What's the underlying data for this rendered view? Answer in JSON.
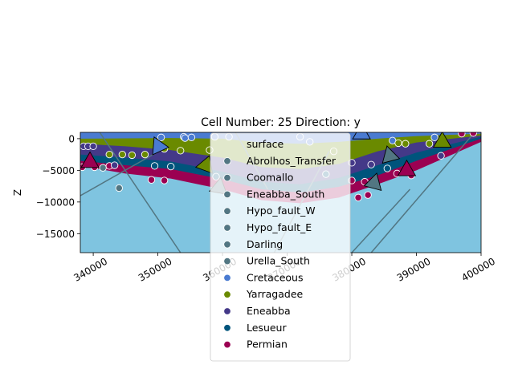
{
  "chart_data": {
    "type": "cross-section",
    "title": "Cell Number: 25 Direction: y",
    "xlabel": "",
    "ylabel": "Z",
    "xlim": [
      338000,
      400000
    ],
    "ylim": [
      -18000,
      1000
    ],
    "xticks": [
      340000,
      350000,
      360000,
      370000,
      380000,
      390000,
      400000
    ],
    "xtick_labels": [
      "340000",
      "350000",
      "360000",
      "370000",
      "380000",
      "390000",
      "400000"
    ],
    "yticks": [
      0,
      -5000,
      -10000,
      -15000
    ],
    "ytick_labels": [
      "0",
      "−5000",
      "−10000",
      "−15000"
    ],
    "legend": [
      {
        "name": "surface",
        "color": "none"
      },
      {
        "name": "Abrolhos_Transfer",
        "color": "#527682"
      },
      {
        "name": "Coomallo",
        "color": "#527682"
      },
      {
        "name": "Eneabba_South",
        "color": "#527682"
      },
      {
        "name": "Hypo_fault_W",
        "color": "#527682"
      },
      {
        "name": "Hypo_fault_E",
        "color": "#527682"
      },
      {
        "name": "Darling",
        "color": "#527682"
      },
      {
        "name": "Urella_South",
        "color": "#527682"
      },
      {
        "name": "Cretaceous",
        "color": "#4a7bd1"
      },
      {
        "name": "Yarragadee",
        "color": "#6a8a00"
      },
      {
        "name": "Eneabba",
        "color": "#443988"
      },
      {
        "name": "Lesueur",
        "color": "#00547c"
      },
      {
        "name": "Permian",
        "color": "#9b0052"
      }
    ],
    "legend_location": "center",
    "basement_color": "#7fc4e0",
    "layers": [
      {
        "name": "Cretaceous",
        "color": "#4a7bd1",
        "x": [
          338000,
          345000,
          352000,
          360000,
          366000,
          372000,
          378000,
          384000,
          390000,
          400000
        ],
        "bottom": [
          0,
          50,
          100,
          0,
          -600,
          -800,
          -500,
          0,
          400,
          800
        ]
      },
      {
        "name": "Yarragadee",
        "color": "#6a8a00",
        "x": [
          338000,
          345000,
          352000,
          360000,
          366000,
          372000,
          378000,
          384000,
          390000,
          400000
        ],
        "bottom": [
          -800,
          -1200,
          -1800,
          -3000,
          -4500,
          -4800,
          -4000,
          -2000,
          -600,
          500
        ]
      },
      {
        "name": "Eneabba",
        "color": "#443988",
        "x": [
          338000,
          345000,
          352000,
          360000,
          366000,
          372000,
          378000,
          384000,
          390000,
          400000
        ],
        "bottom": [
          -2500,
          -3000,
          -3600,
          -5200,
          -6800,
          -7200,
          -6200,
          -4200,
          -2200,
          300
        ]
      },
      {
        "name": "Lesueur",
        "color": "#00547c",
        "x": [
          338000,
          345000,
          352000,
          360000,
          366000,
          372000,
          378000,
          384000,
          390000,
          400000
        ],
        "bottom": [
          -3500,
          -4200,
          -4800,
          -6400,
          -8000,
          -8500,
          -7600,
          -5800,
          -3500,
          0
        ]
      },
      {
        "name": "Permian",
        "color": "#9b0052",
        "x": [
          338000,
          345000,
          352000,
          360000,
          366000,
          372000,
          378000,
          384000,
          390000,
          400000
        ],
        "bottom": [
          -4300,
          -5500,
          -6300,
          -8000,
          -9700,
          -10200,
          -9300,
          -7200,
          -5000,
          -500
        ]
      }
    ],
    "faults": [
      {
        "x": [
          338000,
          351000
        ],
        "y": [
          -9000,
          -1500
        ]
      },
      {
        "x": [
          341000,
          353500
        ],
        "y": [
          1000,
          -18000
        ]
      },
      {
        "x": [
          368000,
          376500
        ],
        "y": [
          -18000,
          -2000
        ]
      },
      {
        "x": [
          380000,
          389000
        ],
        "y": [
          -18000,
          -8000
        ]
      },
      {
        "x": [
          383000,
          399000
        ],
        "y": [
          -18000,
          1000
        ]
      },
      {
        "x": [
          362000,
          367000
        ],
        "y": [
          1000,
          -8000
        ]
      }
    ],
    "points": [
      {
        "x": 338500,
        "y": -1200,
        "color": "#443988"
      },
      {
        "x": 339200,
        "y": -1200,
        "color": "#443988"
      },
      {
        "x": 340000,
        "y": -1200,
        "color": "#443988"
      },
      {
        "x": 338300,
        "y": -4500,
        "color": "#9b0052"
      },
      {
        "x": 340200,
        "y": -4500,
        "color": "#9b0052"
      },
      {
        "x": 341500,
        "y": -4600,
        "color": "#527682"
      },
      {
        "x": 342500,
        "y": -4300,
        "color": "#9b0052"
      },
      {
        "x": 343300,
        "y": -4200,
        "color": "#443988"
      },
      {
        "x": 342500,
        "y": -2500,
        "color": "#6a8a00"
      },
      {
        "x": 344500,
        "y": -2500,
        "color": "#6a8a00"
      },
      {
        "x": 346000,
        "y": -2600,
        "color": "#6a8a00"
      },
      {
        "x": 348000,
        "y": -2500,
        "color": "#6a8a00"
      },
      {
        "x": 349500,
        "y": -4300,
        "color": "#00547c"
      },
      {
        "x": 352000,
        "y": -4400,
        "color": "#00547c"
      },
      {
        "x": 349000,
        "y": -6500,
        "color": "#9b0052"
      },
      {
        "x": 351000,
        "y": -6600,
        "color": "#9b0052"
      },
      {
        "x": 344000,
        "y": -7800,
        "color": "#527682"
      },
      {
        "x": 350500,
        "y": 200,
        "color": "#4a7bd1"
      },
      {
        "x": 351000,
        "y": -1600,
        "color": "#6a8a00"
      },
      {
        "x": 354000,
        "y": 300,
        "color": "#4a7bd1"
      },
      {
        "x": 354200,
        "y": 100,
        "color": "#4a7bd1"
      },
      {
        "x": 355200,
        "y": 200,
        "color": "#4a7bd1"
      },
      {
        "x": 353500,
        "y": -1900,
        "color": "#6a8a00"
      },
      {
        "x": 358000,
        "y": -1800,
        "color": "#6a8a00"
      },
      {
        "x": 358800,
        "y": 300,
        "color": "#4a7bd1"
      },
      {
        "x": 359000,
        "y": -6000,
        "color": "#00547c"
      },
      {
        "x": 361000,
        "y": 300,
        "color": "#4a7bd1"
      },
      {
        "x": 372000,
        "y": 300,
        "color": "#4a7bd1"
      },
      {
        "x": 373500,
        "y": -500,
        "color": "#4a7bd1"
      },
      {
        "x": 376000,
        "y": -5600,
        "color": "#00547c"
      },
      {
        "x": 377200,
        "y": -2000,
        "color": "#6a8a00"
      },
      {
        "x": 380000,
        "y": -3800,
        "color": "#443988"
      },
      {
        "x": 380000,
        "y": -6600,
        "color": "#9b0052"
      },
      {
        "x": 381000,
        "y": -9300,
        "color": "#9b0052"
      },
      {
        "x": 382000,
        "y": -6800,
        "color": "#9b0052"
      },
      {
        "x": 382500,
        "y": -8900,
        "color": "#9b0052"
      },
      {
        "x": 383000,
        "y": -4100,
        "color": "#443988"
      },
      {
        "x": 385500,
        "y": -4700,
        "color": "#00547c"
      },
      {
        "x": 386300,
        "y": -300,
        "color": "#4a7bd1"
      },
      {
        "x": 387200,
        "y": -700,
        "color": "#6a8a00"
      },
      {
        "x": 388300,
        "y": -800,
        "color": "#6a8a00"
      },
      {
        "x": 387000,
        "y": -5500,
        "color": "#9b0052"
      },
      {
        "x": 389200,
        "y": -5800,
        "color": "#9b0052"
      },
      {
        "x": 392000,
        "y": -800,
        "color": "#6a8a00"
      },
      {
        "x": 392800,
        "y": 200,
        "color": "#4a7bd1"
      },
      {
        "x": 393800,
        "y": -2700,
        "color": "#443988"
      },
      {
        "x": 397000,
        "y": 800,
        "color": "#9b0052"
      },
      {
        "x": 398800,
        "y": 900,
        "color": "#9b0052"
      }
    ],
    "orientations": [
      {
        "x": 339500,
        "y": -3500,
        "color": "#9b0052",
        "rot": 0
      },
      {
        "x": 350000,
        "y": -1000,
        "color": "#4a7bd1",
        "rot": -25
      },
      {
        "x": 357500,
        "y": -4000,
        "color": "#6a8a00",
        "rot": 20
      },
      {
        "x": 359500,
        "y": -7500,
        "color": "#527682",
        "rot": 10
      },
      {
        "x": 381500,
        "y": 1000,
        "color": "#4a7bd1",
        "rot": 0
      },
      {
        "x": 383500,
        "y": -6800,
        "color": "#527682",
        "rot": 15
      },
      {
        "x": 385800,
        "y": -2500,
        "color": "#527682",
        "rot": -15
      },
      {
        "x": 388500,
        "y": -4800,
        "color": "#9b0052",
        "rot": 0
      },
      {
        "x": 394000,
        "y": -300,
        "color": "#6a8a00",
        "rot": 0
      }
    ]
  }
}
